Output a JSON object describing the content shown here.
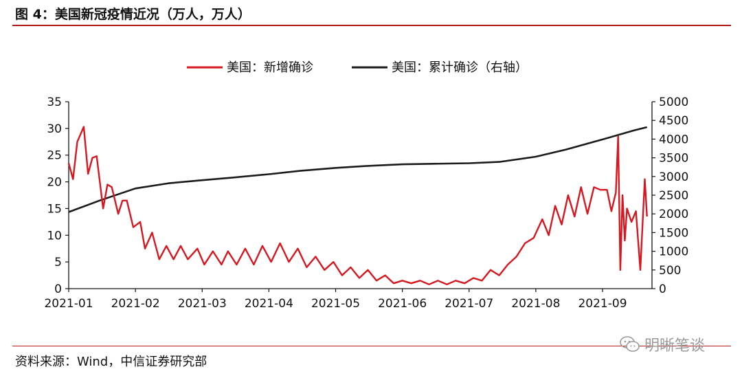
{
  "header": {
    "title": "图 4：美国新冠疫情近况（万人，万人）"
  },
  "footer": {
    "source": "资料来源：Wind，中信证券研究部",
    "watermark": "明晰笔谈",
    "watermark_icon": "wechat-icon"
  },
  "chart_data": {
    "type": "line",
    "title": "",
    "x_ticks": [
      "2021-01",
      "2021-02",
      "2021-03",
      "2021-04",
      "2021-05",
      "2021-06",
      "2021-07",
      "2021-08",
      "2021-09"
    ],
    "y_left": {
      "ticks": [
        "0",
        "5",
        "10",
        "15",
        "20",
        "25",
        "30",
        "35"
      ],
      "range": [
        0,
        35
      ]
    },
    "y_right": {
      "ticks": [
        "0",
        "500",
        "1000",
        "1500",
        "2000",
        "2500",
        "3000",
        "3500",
        "4000",
        "4500",
        "5000"
      ],
      "range": [
        0,
        5000
      ]
    },
    "grid": false,
    "legend_position": "top-center",
    "series": [
      {
        "name": "美国：新增确诊",
        "axis": "left",
        "color": "#d7171f",
        "x": [
          "2021-01-01",
          "2021-01-03",
          "2021-01-05",
          "2021-01-08",
          "2021-01-10",
          "2021-01-12",
          "2021-01-14",
          "2021-01-17",
          "2021-01-19",
          "2021-01-21",
          "2021-01-24",
          "2021-01-26",
          "2021-01-28",
          "2021-01-31",
          "2021-02-03",
          "2021-02-05",
          "2021-02-08",
          "2021-02-11",
          "2021-02-14",
          "2021-02-17",
          "2021-02-20",
          "2021-02-23",
          "2021-02-27",
          "2021-03-02",
          "2021-03-06",
          "2021-03-10",
          "2021-03-13",
          "2021-03-17",
          "2021-03-21",
          "2021-03-25",
          "2021-03-29",
          "2021-04-02",
          "2021-04-06",
          "2021-04-10",
          "2021-04-14",
          "2021-04-18",
          "2021-04-22",
          "2021-04-26",
          "2021-04-30",
          "2021-05-04",
          "2021-05-08",
          "2021-05-12",
          "2021-05-16",
          "2021-05-20",
          "2021-05-24",
          "2021-05-28",
          "2021-06-01",
          "2021-06-05",
          "2021-06-09",
          "2021-06-13",
          "2021-06-17",
          "2021-06-21",
          "2021-06-25",
          "2021-06-29",
          "2021-07-03",
          "2021-07-07",
          "2021-07-11",
          "2021-07-15",
          "2021-07-19",
          "2021-07-23",
          "2021-07-27",
          "2021-07-31",
          "2021-08-04",
          "2021-08-07",
          "2021-08-10",
          "2021-08-13",
          "2021-08-16",
          "2021-08-19",
          "2021-08-22",
          "2021-08-25",
          "2021-08-28",
          "2021-08-31",
          "2021-09-03",
          "2021-09-05",
          "2021-09-07",
          "2021-09-08",
          "2021-09-09",
          "2021-09-10",
          "2021-09-11",
          "2021-09-12",
          "2021-09-14",
          "2021-09-16",
          "2021-09-18",
          "2021-09-20",
          "2021-09-21"
        ],
        "values": [
          23.5,
          20.5,
          27.5,
          30.3,
          21.5,
          24.5,
          24.8,
          15.0,
          19.5,
          19.0,
          14.0,
          16.5,
          16.5,
          11.5,
          12.5,
          7.5,
          10.5,
          5.5,
          8.0,
          5.5,
          8.0,
          5.5,
          7.5,
          4.5,
          7.0,
          4.5,
          7.0,
          4.5,
          7.5,
          4.5,
          8.0,
          5.0,
          8.5,
          5.0,
          7.5,
          4.0,
          6.0,
          3.5,
          5.0,
          2.5,
          4.0,
          2.0,
          3.5,
          1.5,
          2.5,
          1.0,
          1.5,
          1.0,
          1.5,
          0.8,
          1.5,
          0.8,
          1.5,
          1.0,
          2.0,
          1.5,
          3.5,
          2.5,
          4.5,
          6.0,
          8.5,
          9.5,
          13.0,
          10.0,
          15.5,
          12.0,
          17.5,
          13.5,
          19.0,
          14.0,
          19.0,
          18.5,
          18.5,
          14.5,
          18.0,
          28.5,
          3.5,
          17.5,
          9.0,
          15.0,
          12.5,
          14.5,
          3.5,
          20.5,
          13.5
        ]
      },
      {
        "name": "美国：累计确诊（右轴）",
        "axis": "right",
        "color": "#1a1a1a",
        "x": [
          "2021-01-01",
          "2021-01-15",
          "2021-02-01",
          "2021-02-15",
          "2021-03-01",
          "2021-03-15",
          "2021-04-01",
          "2021-04-15",
          "2021-05-01",
          "2021-05-15",
          "2021-06-01",
          "2021-06-15",
          "2021-07-01",
          "2021-07-15",
          "2021-08-01",
          "2021-08-15",
          "2021-09-01",
          "2021-09-15",
          "2021-09-21"
        ],
        "values": [
          2050,
          2350,
          2680,
          2820,
          2900,
          2970,
          3060,
          3150,
          3230,
          3280,
          3325,
          3340,
          3355,
          3390,
          3530,
          3720,
          3990,
          4230,
          4320
        ]
      }
    ]
  }
}
